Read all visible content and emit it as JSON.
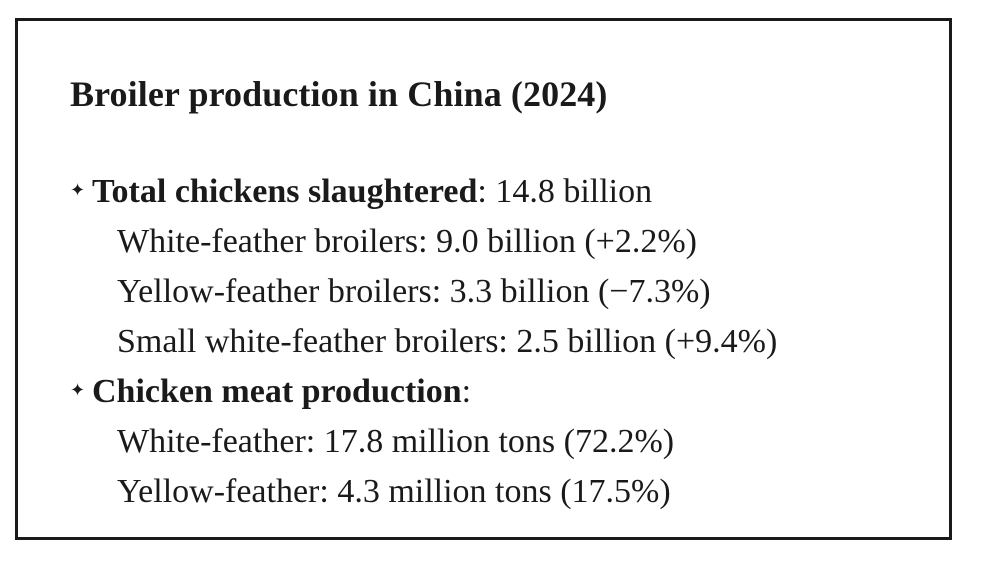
{
  "title": "Broiler production in China (2024)",
  "bullet_symbol": "✦",
  "sections": [
    {
      "label": "Total chickens slaughtered",
      "separator": ":",
      "value": " 14.8 billion",
      "items": [
        "White-feather broilers: 9.0 billion (+2.2%)",
        "Yellow-feather broilers: 3.3 billion (−7.3%)",
        "Small white-feather broilers: 2.5 billion (+9.4%)"
      ]
    },
    {
      "label": "Chicken meat production",
      "separator": ":",
      "value": "",
      "items": [
        "White-feather: 17.8 million tons (72.2%)",
        "Yellow-feather: 4.3 million tons (17.5%)"
      ]
    }
  ]
}
